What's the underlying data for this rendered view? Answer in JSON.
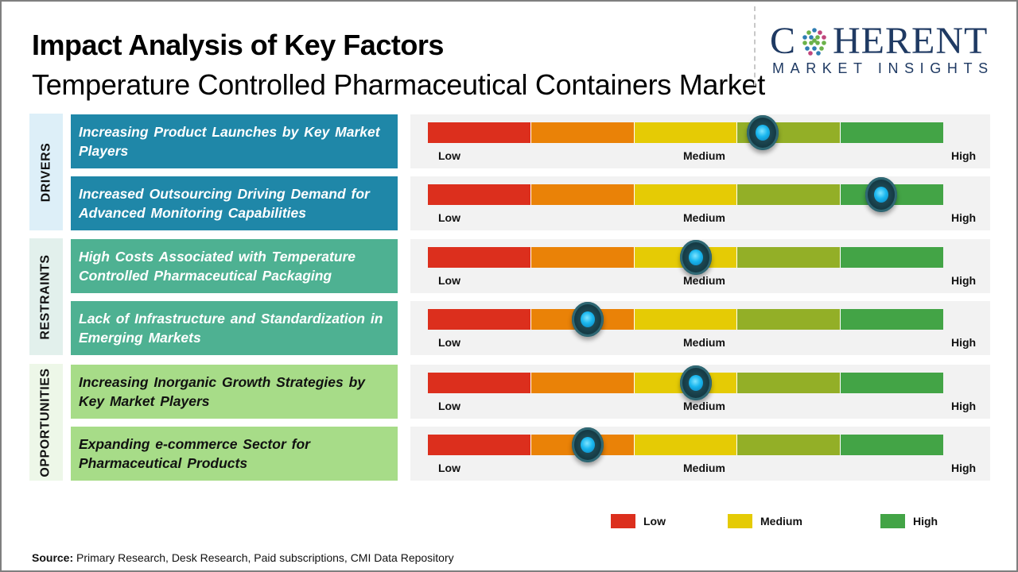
{
  "header": {
    "title": "Impact Analysis of Key Factors",
    "subtitle": "Temperature Controlled Pharmaceutical Containers Market"
  },
  "logo": {
    "word_left": "C",
    "word_right": "HERENT",
    "tagline": "MARKET INSIGHTS",
    "color": "#1f3a63"
  },
  "scale_colors": [
    "#dc2f1d",
    "#ea8207",
    "#e5cb05",
    "#93af27",
    "#43a446"
  ],
  "scale_labels": {
    "low": "Low",
    "medium": "Medium",
    "high": "High"
  },
  "categories": [
    {
      "label": "DRIVERS",
      "bg": "#ddeff8",
      "factor_bg": "#1f87a8",
      "factor_color": "#ffffff"
    },
    {
      "label": "RESTRAINTS",
      "bg": "#e2f0ec",
      "factor_bg": "#4eb192",
      "factor_color": "#ffffff"
    },
    {
      "label": "OPPORTUNITIES",
      "bg": "#edf7e8",
      "factor_bg": "#a7dc88",
      "factor_color": "#111111"
    }
  ],
  "chart_data": {
    "type": "table",
    "title": "Impact Analysis of Key Factors",
    "subtitle": "Temperature Controlled Pharmaceutical Containers Market",
    "scale": [
      "Low",
      "Medium",
      "High"
    ],
    "value_range": [
      0,
      1
    ],
    "rows": [
      {
        "category": "DRIVERS",
        "factor": "Increasing Product Launches by Key Market Players",
        "impact": 0.65
      },
      {
        "category": "DRIVERS",
        "factor": "Increased Outsourcing Driving Demand for Advanced Monitoring Capabilities",
        "impact": 0.88
      },
      {
        "category": "RESTRAINTS",
        "factor": "High Costs Associated with Temperature Controlled Pharmaceutical Packaging",
        "impact": 0.52
      },
      {
        "category": "RESTRAINTS",
        "factor": "Lack of Infrastructure and Standardization in Emerging Markets",
        "impact": 0.31
      },
      {
        "category": "OPPORTUNITIES",
        "factor": "Increasing Inorganic Growth Strategies by Key Market Players",
        "impact": 0.52
      },
      {
        "category": "OPPORTUNITIES",
        "factor": "Expanding e-commerce Sector for Pharmaceutical Products",
        "impact": 0.31
      }
    ],
    "legend": [
      {
        "label": "Low",
        "color": "#dc2f1d"
      },
      {
        "label": "Medium",
        "color": "#e5cb05"
      },
      {
        "label": "High",
        "color": "#43a446"
      }
    ],
    "legend_position": "bottom-right"
  },
  "footer": {
    "source_label": "Source:",
    "source_text": " Primary Research, Desk Research, Paid subscriptions, CMI Data Repository"
  }
}
